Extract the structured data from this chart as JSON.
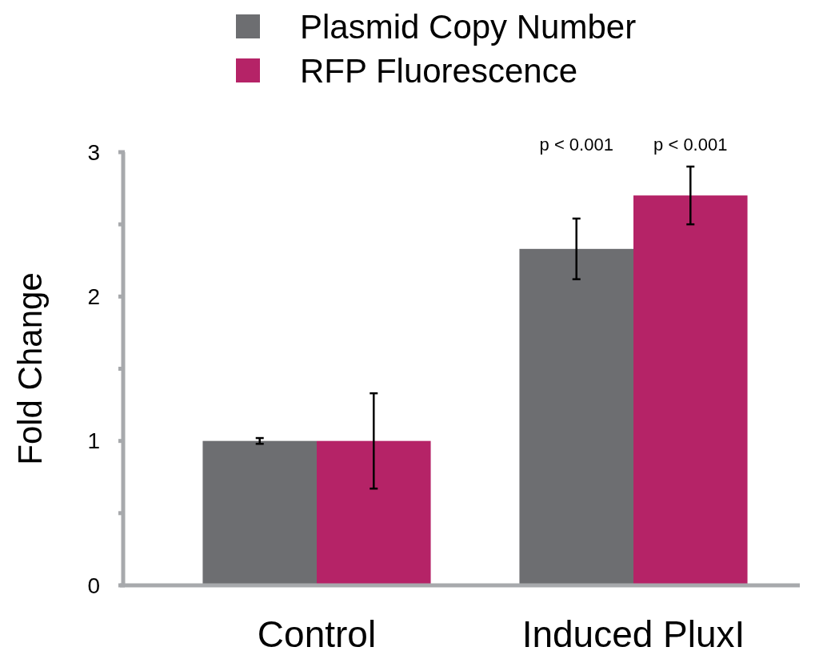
{
  "chart_data": {
    "type": "bar",
    "ylabel": "Fold Change",
    "categories": [
      "Control",
      "Induced PluxI"
    ],
    "series": [
      {
        "name": "Plasmid Copy Number",
        "color": "#6d6e71",
        "values": [
          1.0,
          2.33
        ],
        "errors": [
          0.02,
          0.21
        ]
      },
      {
        "name": "RFP Fluorescence",
        "color": "#b52367",
        "values": [
          1.0,
          2.7
        ],
        "errors": [
          0.33,
          0.2
        ]
      }
    ],
    "ylim": [
      0,
      3
    ],
    "yticks": [
      0,
      {
        "value": 0.5,
        "label": null
      },
      1,
      {
        "value": 1.5,
        "label": null
      },
      2,
      {
        "value": 2.5,
        "label": null
      },
      3
    ],
    "annotations": [
      "p < 0.001",
      "p < 0.001"
    ],
    "legend": "top",
    "grid": false
  }
}
